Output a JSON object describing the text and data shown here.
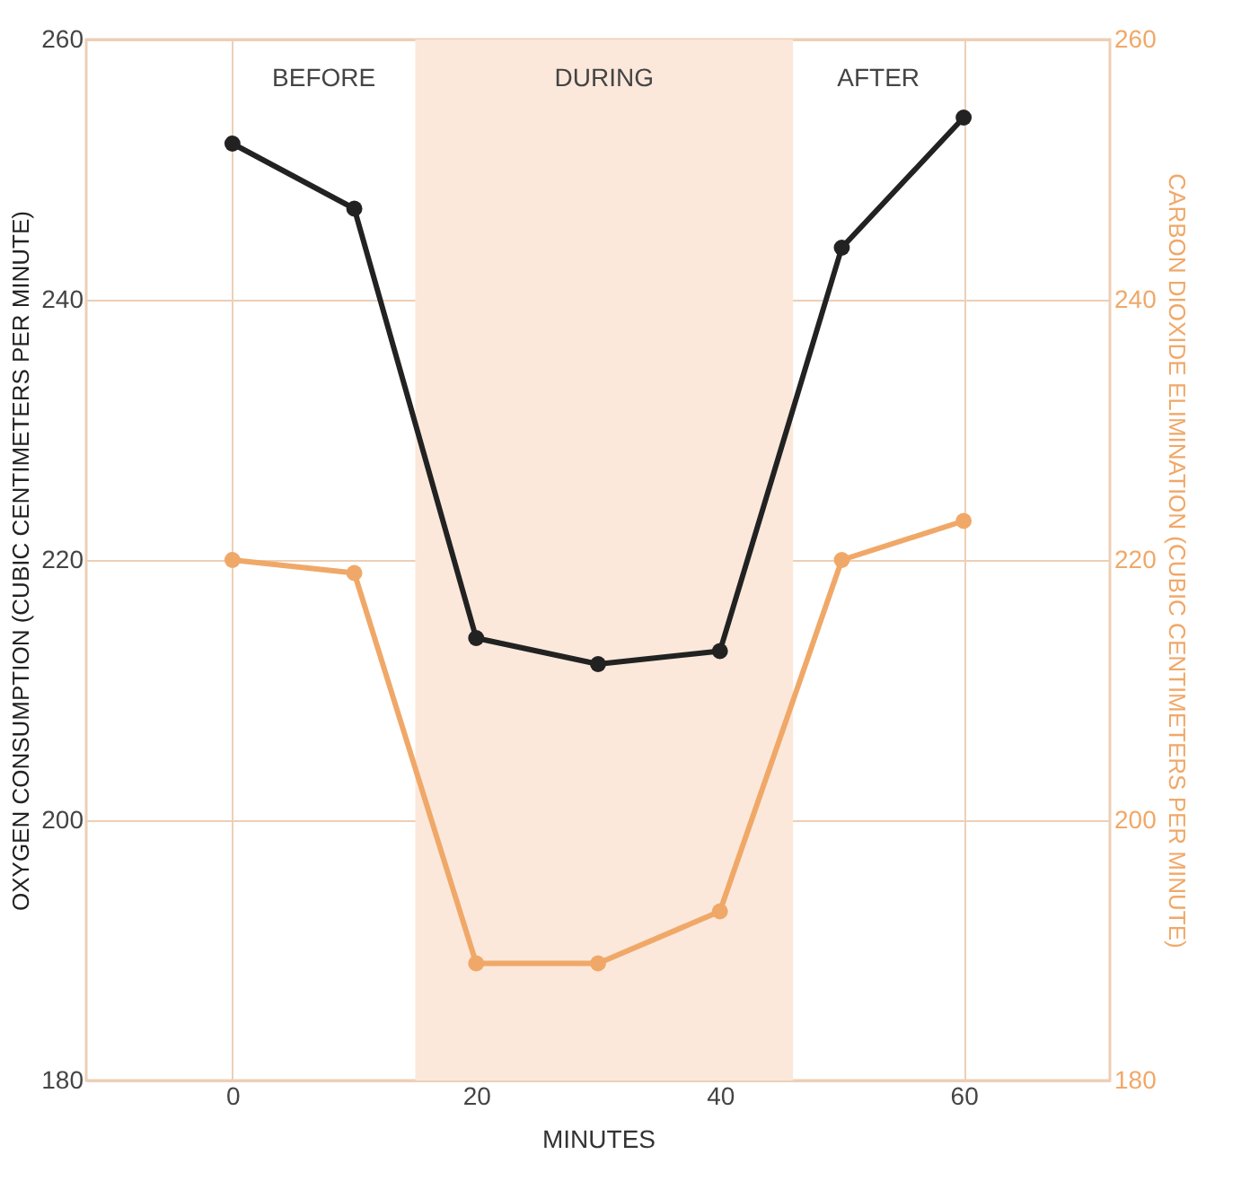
{
  "chart_data": {
    "type": "line",
    "xlabel": "MINUTES",
    "ylabel": "OXYGEN CONSUMPTION (CUBIC CENTIMETERS PER MINUTE)",
    "y2label": "CARBON DIOXIDE ELIMINATION (CUBIC CENTIMETERS PER MINUTE)",
    "x": [
      0,
      10,
      20,
      30,
      40,
      50,
      60
    ],
    "series": [
      {
        "color": "#222222",
        "values": [
          252,
          247,
          214,
          212,
          213,
          244,
          254
        ]
      },
      {
        "color": "#f0a868",
        "axis": "y2",
        "values": [
          220,
          219,
          189,
          189,
          193,
          220,
          223
        ]
      }
    ],
    "xlim": [
      -12,
      72
    ],
    "xticks": [
      0,
      20,
      40,
      60
    ],
    "ylim": [
      180,
      260
    ],
    "yticks": [
      180,
      200,
      220,
      240,
      260
    ],
    "y2lim": [
      180,
      260
    ],
    "y2ticks": [
      180,
      200,
      220,
      240,
      260
    ],
    "bands": [
      {
        "axis": "x",
        "from": 15,
        "to": 46,
        "label": "DURING",
        "color": "#fbe8da"
      }
    ],
    "annotations": [
      "BEFORE",
      "AFTER"
    ],
    "grid": true,
    "marker": "circle",
    "line_style": "solid"
  }
}
